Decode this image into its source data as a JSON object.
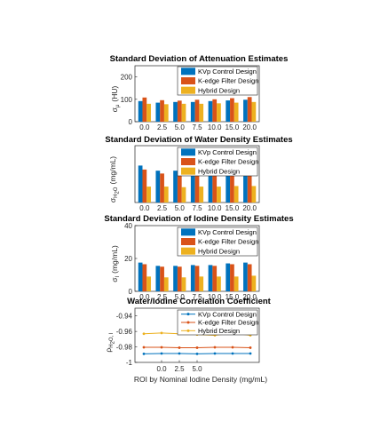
{
  "chart_data": [
    {
      "type": "bar",
      "title": "Standard Deviation of Attenuation Estimates",
      "ylabel_symbol": "σ",
      "ylabel_sub": "μ",
      "ylabel_unit": "(HU)",
      "categories": [
        "0.0",
        "2.5",
        "5.0",
        "7.5",
        "10.0",
        "15.0",
        "20.0"
      ],
      "ylim": [
        0,
        250
      ],
      "yticks": [
        "0",
        "100",
        "200"
      ],
      "legend": "top-right",
      "series": [
        {
          "name": "KVp Control Design",
          "color": "#0072BD",
          "values": [
            92,
            85,
            88,
            88,
            92,
            95,
            98
          ]
        },
        {
          "name": "K-edge Filter Design",
          "color": "#D95319",
          "values": [
            108,
            96,
            94,
            98,
            100,
            105,
            110
          ]
        },
        {
          "name": "Hybrid Design",
          "color": "#EDB120",
          "values": [
            80,
            78,
            80,
            80,
            82,
            85,
            88
          ]
        }
      ]
    },
    {
      "type": "bar",
      "title": "Standard Deviation of Water Density Estimates",
      "ylabel_symbol": "σ",
      "ylabel_sub": "H",
      "ylabel_sub2": "2",
      "ylabel_sub3": "O",
      "ylabel_unit": "(mg/mL)",
      "categories": [
        "0.0",
        "2.5",
        "5.0",
        "7.5",
        "10.0",
        "15.0",
        "20.0"
      ],
      "ylim": [
        0,
        1000
      ],
      "yticks": [],
      "legend": "top-right",
      "series": [
        {
          "name": "KVp Control Design",
          "color": "#0072BD",
          "values": [
            650,
            560,
            560,
            580,
            590,
            630,
            640
          ]
        },
        {
          "name": "K-edge Filter Design",
          "color": "#D95319",
          "values": [
            580,
            510,
            520,
            520,
            530,
            570,
            560
          ]
        },
        {
          "name": "Hybrid Design",
          "color": "#EDB120",
          "values": [
            280,
            280,
            270,
            280,
            280,
            290,
            290
          ]
        }
      ]
    },
    {
      "type": "bar",
      "title": "Standard Deviation of Iodine Density Estimates",
      "ylabel_symbol": "σ",
      "ylabel_sub": "I",
      "ylabel_unit": "(mg/mL)",
      "categories": [
        "0.0",
        "2.5",
        "5.0",
        "7.5",
        "10.0",
        "15.0",
        "20.0"
      ],
      "ylim": [
        0,
        40
      ],
      "yticks": [
        "0",
        "20",
        "40"
      ],
      "legend": "top-right",
      "series": [
        {
          "name": "KVp Control Design",
          "color": "#0072BD",
          "values": [
            17.5,
            15.5,
            15.5,
            16,
            16,
            17,
            17.5
          ]
        },
        {
          "name": "K-edge Filter Design",
          "color": "#D95319",
          "values": [
            16.5,
            15,
            15,
            15.5,
            15.5,
            16.5,
            16.5
          ]
        },
        {
          "name": "Hybrid Design",
          "color": "#EDB120",
          "values": [
            9,
            8.5,
            8.5,
            9,
            9,
            9,
            9.5
          ]
        }
      ]
    },
    {
      "type": "line",
      "title": "Water/Iodine Correlation Coefficient",
      "ylabel_symbol": "ρ",
      "ylabel_sub": "H",
      "ylabel_sub2": "2",
      "ylabel_sub3": "O, I",
      "xlabel": "ROI by Nominal Iodine Density (mg/mL)",
      "x": [
        -2.5,
        0,
        2.5,
        5,
        7.5,
        10,
        12.5
      ],
      "xlim": [
        -3.75,
        13.75
      ],
      "xticks_values": [
        0,
        2.5,
        5
      ],
      "xticks": [
        "0.0",
        "2.5",
        "5.0"
      ],
      "ylim": [
        -1,
        -0.93
      ],
      "yticks_values": [
        -1,
        -0.98,
        -0.96,
        -0.94
      ],
      "yticks": [
        "-1",
        "-0.98",
        "-0.96",
        "-0.94"
      ],
      "legend": "top-right",
      "series": [
        {
          "name": "KVp Control Design",
          "color": "#0072BD",
          "values": [
            -0.989,
            -0.9885,
            -0.9885,
            -0.989,
            -0.9885,
            -0.9885,
            -0.9885
          ]
        },
        {
          "name": "K-edge Filter Design",
          "color": "#D95319",
          "values": [
            -0.9805,
            -0.9805,
            -0.981,
            -0.981,
            -0.9805,
            -0.9805,
            -0.981
          ]
        },
        {
          "name": "Hybrid Design",
          "color": "#EDB120",
          "values": [
            -0.963,
            -0.962,
            -0.963,
            -0.964,
            -0.965,
            -0.962,
            -0.965
          ]
        }
      ]
    }
  ]
}
